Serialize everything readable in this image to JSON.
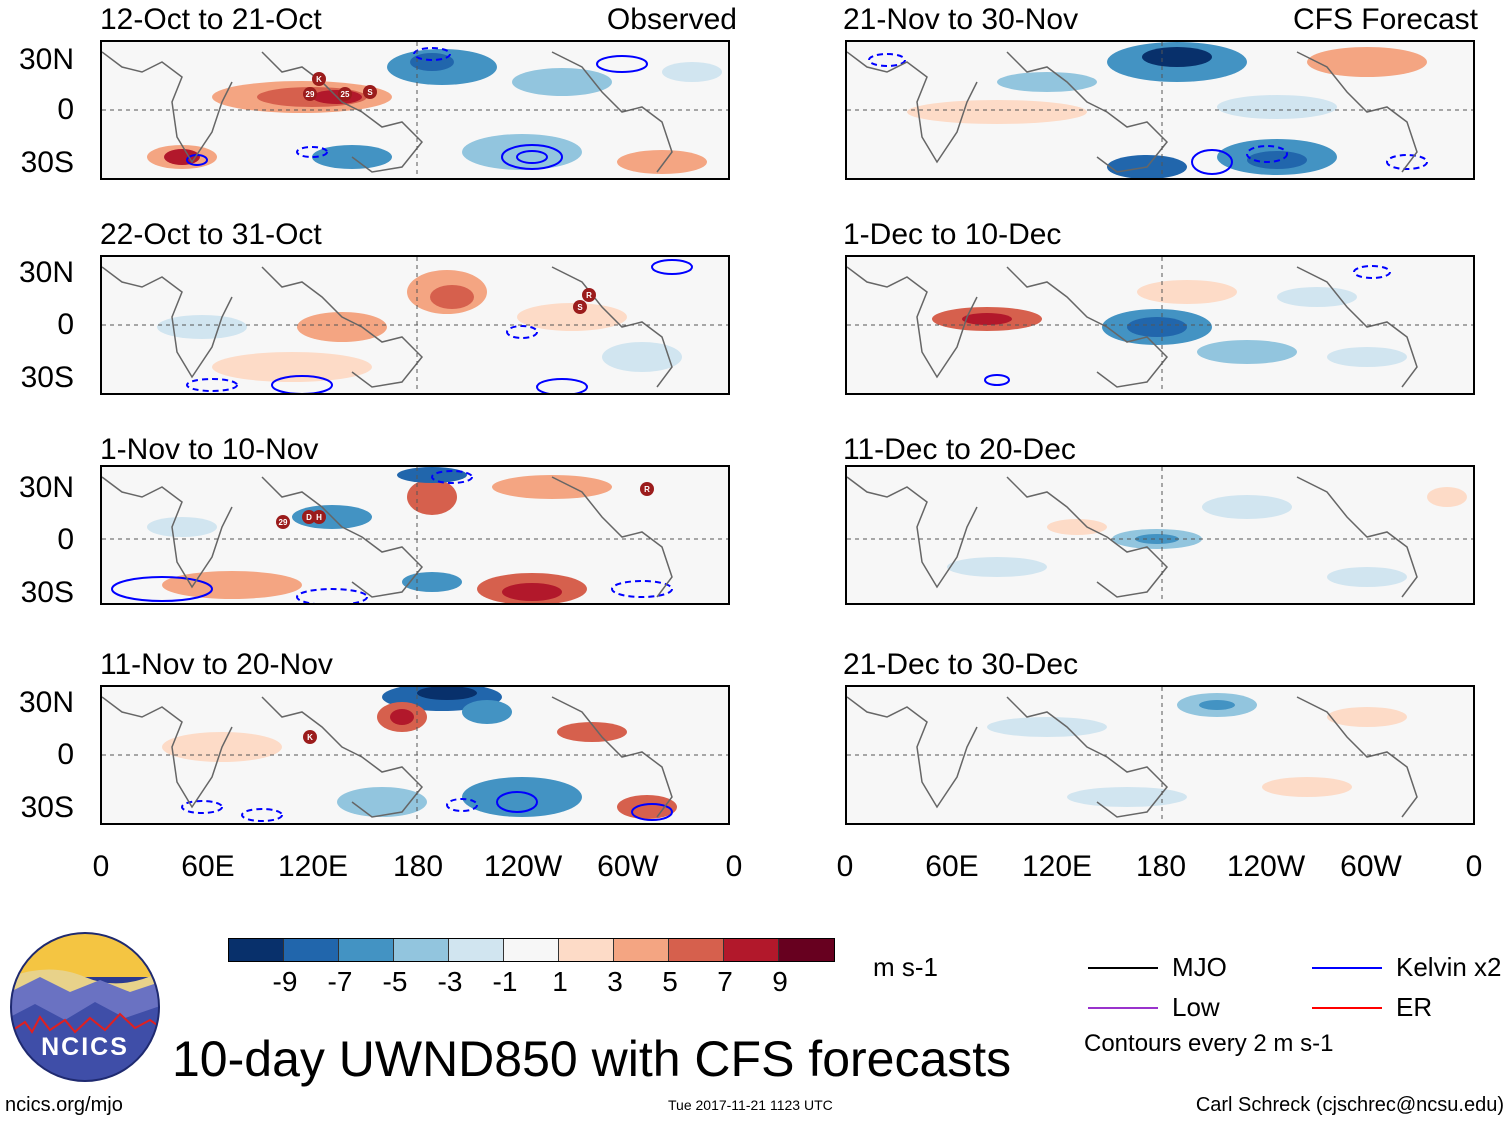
{
  "observed_label": "Observed",
  "forecast_label": "CFS Forecast",
  "lat_labels": [
    "30N",
    "0",
    "30S"
  ],
  "lon_labels": [
    "0",
    "60E",
    "120E",
    "180",
    "120W",
    "60W",
    "0"
  ],
  "panels_observed": [
    {
      "title": "12-Oct to 21-Oct",
      "storms": [
        "K",
        "29",
        "25",
        "S"
      ]
    },
    {
      "title": "22-Oct to 31-Oct",
      "storms": [
        "R",
        "S"
      ]
    },
    {
      "title": "1-Nov to 10-Nov",
      "storms": [
        "29",
        "D",
        "H",
        "R"
      ]
    },
    {
      "title": "11-Nov to 20-Nov",
      "storms": [
        "K"
      ]
    }
  ],
  "panels_forecast": [
    {
      "title": "21-Nov to 30-Nov"
    },
    {
      "title": "1-Dec to 10-Dec"
    },
    {
      "title": "11-Dec to 20-Dec"
    },
    {
      "title": "21-Dec to 30-Dec"
    }
  ],
  "colorbar": {
    "colors": [
      "#08306b",
      "#2166ac",
      "#4393c3",
      "#92c5de",
      "#d1e5f0",
      "#f7f7f7",
      "#fddbc7",
      "#f4a582",
      "#d6604d",
      "#b2182b",
      "#67001f"
    ],
    "ticks": [
      "-9",
      "-7",
      "-5",
      "-3",
      "-1",
      "1",
      "3",
      "5",
      "7",
      "9"
    ],
    "units": "m s-1"
  },
  "legend": {
    "items": [
      {
        "label": "MJO",
        "color": "#000000"
      },
      {
        "label": "Kelvin x2",
        "color": "#0000ff"
      },
      {
        "label": "Low",
        "color": "#9933cc"
      },
      {
        "label": "ER",
        "color": "#ff0000"
      }
    ],
    "contours_note": "Contours every 2 m s-1"
  },
  "main_title": "10-day UWND850 with CFS forecasts",
  "logo_text": "NCICS",
  "footer": {
    "url": "ncics.org/mjo",
    "timestamp": "Tue 2017-11-21 1123 UTC",
    "author": "Carl Schreck (cjschrec@ncsu.edu)"
  }
}
